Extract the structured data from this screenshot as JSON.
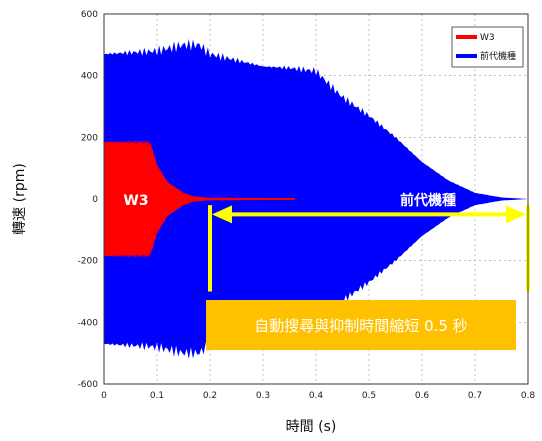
{
  "chart_data": {
    "type": "area",
    "xlabel": "時間 (s)",
    "ylabel": "轉速 (rpm)",
    "xlim": [
      0,
      0.8
    ],
    "ylim": [
      -600,
      600
    ],
    "xticks": [
      "0",
      "0.1",
      "0.2",
      "0.3",
      "0.4",
      "0.5",
      "0.6",
      "0.7",
      "0.8"
    ],
    "yticks": [
      "600",
      "400",
      "200",
      "0",
      "-200",
      "-400",
      "-600"
    ],
    "grid": true,
    "legend_position": "top-right",
    "series": [
      {
        "name": "前代機種",
        "color": "#0000ff",
        "x": [
          0.0,
          0.05,
          0.1,
          0.15,
          0.18,
          0.2,
          0.25,
          0.3,
          0.35,
          0.4,
          0.42,
          0.45,
          0.5,
          0.55,
          0.6,
          0.65,
          0.7,
          0.75,
          0.8
        ],
        "amplitude": [
          470,
          475,
          480,
          500,
          500,
          470,
          450,
          430,
          425,
          415,
          380,
          330,
          270,
          200,
          120,
          60,
          20,
          5,
          0
        ]
      },
      {
        "name": "W3",
        "color": "#ff0000",
        "x": [
          0.0,
          0.085,
          0.09,
          0.1,
          0.12,
          0.15,
          0.17,
          0.2,
          0.36
        ],
        "amplitude": [
          185,
          185,
          170,
          110,
          55,
          20,
          8,
          4,
          3
        ]
      }
    ],
    "annotations": {
      "w3_label": "W3",
      "prev_label": "前代機種",
      "reduction_text": "自動搜尋與抑制時間縮短 0.5 秒",
      "arrow_from_x": 0.2,
      "arrow_to_x": 0.8,
      "arrow_color": "#ffff00",
      "box_color": "#ffc000"
    }
  }
}
